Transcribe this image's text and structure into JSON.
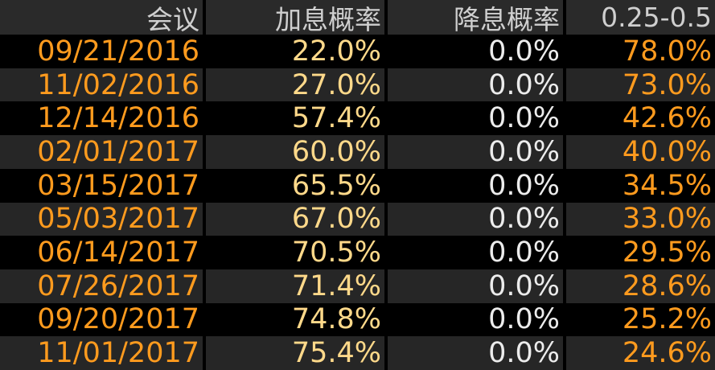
{
  "table": {
    "header": [
      "会议",
      "加息概率",
      "降息概率",
      "0.25-0.5"
    ],
    "rows": [
      [
        "09/21/2016",
        "22.0%",
        "0.0%",
        "78.0%"
      ],
      [
        "11/02/2016",
        "27.0%",
        "0.0%",
        "73.0%"
      ],
      [
        "12/14/2016",
        "57.4%",
        "0.0%",
        "42.6%"
      ],
      [
        "02/01/2017",
        "60.0%",
        "0.0%",
        "40.0%"
      ],
      [
        "03/15/2017",
        "65.5%",
        "0.0%",
        "34.5%"
      ],
      [
        "05/03/2017",
        "67.0%",
        "0.0%",
        "33.0%"
      ],
      [
        "06/14/2017",
        "70.5%",
        "0.0%",
        "29.5%"
      ],
      [
        "07/26/2017",
        "71.4%",
        "0.0%",
        "28.6%"
      ],
      [
        "09/20/2017",
        "74.8%",
        "0.0%",
        "25.2%"
      ],
      [
        "11/01/2017",
        "75.4%",
        "0.0%",
        "24.6%"
      ]
    ]
  }
}
